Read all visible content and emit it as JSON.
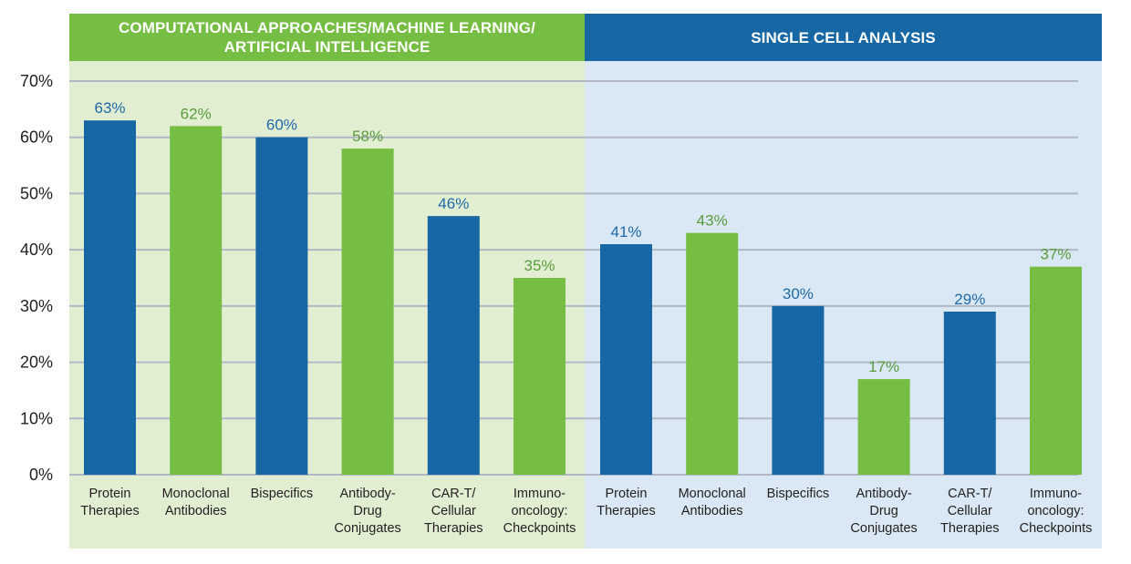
{
  "colors": {
    "blue": "#1667a3",
    "green": "#76bd43",
    "blue_label": "#1f69a8",
    "green_label": "#5a9b3e",
    "panel_left_bg": "#e2eed2",
    "panel_right_bg": "#d9e8f4",
    "grid": "#b1b7c4"
  },
  "chart_data": {
    "type": "bar",
    "title": "",
    "xlabel": "",
    "ylabel": "",
    "ylim": [
      0,
      70
    ],
    "grid": true,
    "yticks": [
      "0%",
      "10%",
      "20%",
      "30%",
      "40%",
      "50%",
      "60%",
      "70%"
    ],
    "ytick_values": [
      0,
      10,
      20,
      30,
      40,
      50,
      60,
      70
    ],
    "groups": [
      {
        "name": "COMPUTATIONAL APPROACHES/MACHINE LEARNING/ ARTIFICIAL INTELLIGENCE",
        "name_lines": [
          "COMPUTATIONAL APPROACHES/MACHINE LEARNING/",
          "ARTIFICIAL INTELLIGENCE"
        ],
        "categories": [
          {
            "lines": [
              "Protein",
              "Therapies"
            ]
          },
          {
            "lines": [
              "Monoclonal",
              "Antibodies"
            ]
          },
          {
            "lines": [
              "Bispecifics"
            ]
          },
          {
            "lines": [
              "Antibody-",
              "Drug",
              "Conjugates"
            ]
          },
          {
            "lines": [
              "CAR-T/",
              "Cellular",
              "Therapies"
            ]
          },
          {
            "lines": [
              "Immuno-",
              "oncology:",
              "Checkpoints"
            ]
          }
        ],
        "values": [
          63,
          62,
          60,
          58,
          46,
          35
        ],
        "labels": [
          "63%",
          "62%",
          "60%",
          "58%",
          "46%",
          "35%"
        ]
      },
      {
        "name": "SINGLE CELL ANALYSIS",
        "name_lines": [
          "SINGLE CELL ANALYSIS"
        ],
        "categories": [
          {
            "lines": [
              "Protein",
              "Therapies"
            ]
          },
          {
            "lines": [
              "Monoclonal",
              "Antibodies"
            ]
          },
          {
            "lines": [
              "Bispecifics"
            ]
          },
          {
            "lines": [
              "Antibody-",
              "Drug",
              "Conjugates"
            ]
          },
          {
            "lines": [
              "CAR-T/",
              "Cellular",
              "Therapies"
            ]
          },
          {
            "lines": [
              "Immuno-",
              "oncology:",
              "Checkpoints"
            ]
          }
        ],
        "values": [
          41,
          43,
          30,
          17,
          29,
          37
        ],
        "labels": [
          "41%",
          "43%",
          "30%",
          "17%",
          "29%",
          "37%"
        ]
      }
    ]
  }
}
